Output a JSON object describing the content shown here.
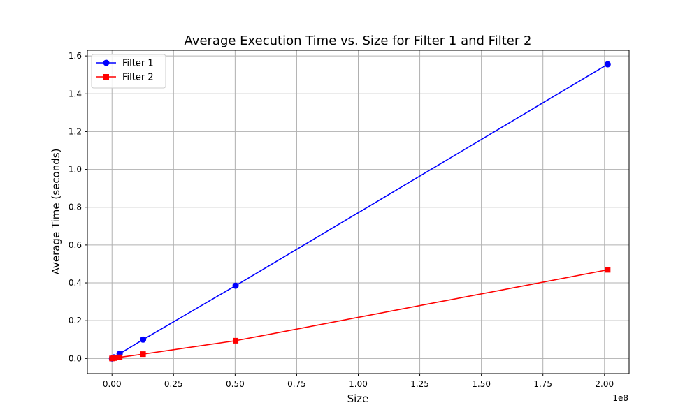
{
  "chart_data": {
    "type": "line",
    "title": "Average Execution Time vs. Size for Filter 1 and Filter 2",
    "xlabel": "Size",
    "ylabel": "Average Time (seconds)",
    "x_offset_label": "1e8",
    "xlim": [
      -0.1,
      2.1
    ],
    "ylim": [
      -0.08,
      1.63
    ],
    "x_ticks": [
      0.0,
      0.25,
      0.5,
      0.75,
      1.0,
      1.25,
      1.5,
      1.75,
      2.0
    ],
    "x_tick_labels": [
      "0.00",
      "0.25",
      "0.50",
      "0.75",
      "1.00",
      "1.25",
      "1.50",
      "1.75",
      "2.00"
    ],
    "y_ticks": [
      0.0,
      0.2,
      0.4,
      0.6,
      0.8,
      1.0,
      1.2,
      1.4,
      1.6
    ],
    "y_tick_labels": [
      "0.0",
      "0.2",
      "0.4",
      "0.6",
      "0.8",
      "1.0",
      "1.2",
      "1.4",
      "1.6"
    ],
    "grid": true,
    "legend_position": "top-left",
    "x": [
      0.0,
      0.008,
      0.031,
      0.126,
      0.502,
      2.013
    ],
    "series": [
      {
        "name": "Filter 1",
        "color": "#0000ff",
        "marker": "circle",
        "values": [
          0.0,
          0.006,
          0.025,
          0.1,
          0.385,
          1.556
        ]
      },
      {
        "name": "Filter 2",
        "color": "#ff0000",
        "marker": "square",
        "values": [
          0.0,
          0.002,
          0.006,
          0.023,
          0.094,
          0.469
        ]
      }
    ]
  }
}
